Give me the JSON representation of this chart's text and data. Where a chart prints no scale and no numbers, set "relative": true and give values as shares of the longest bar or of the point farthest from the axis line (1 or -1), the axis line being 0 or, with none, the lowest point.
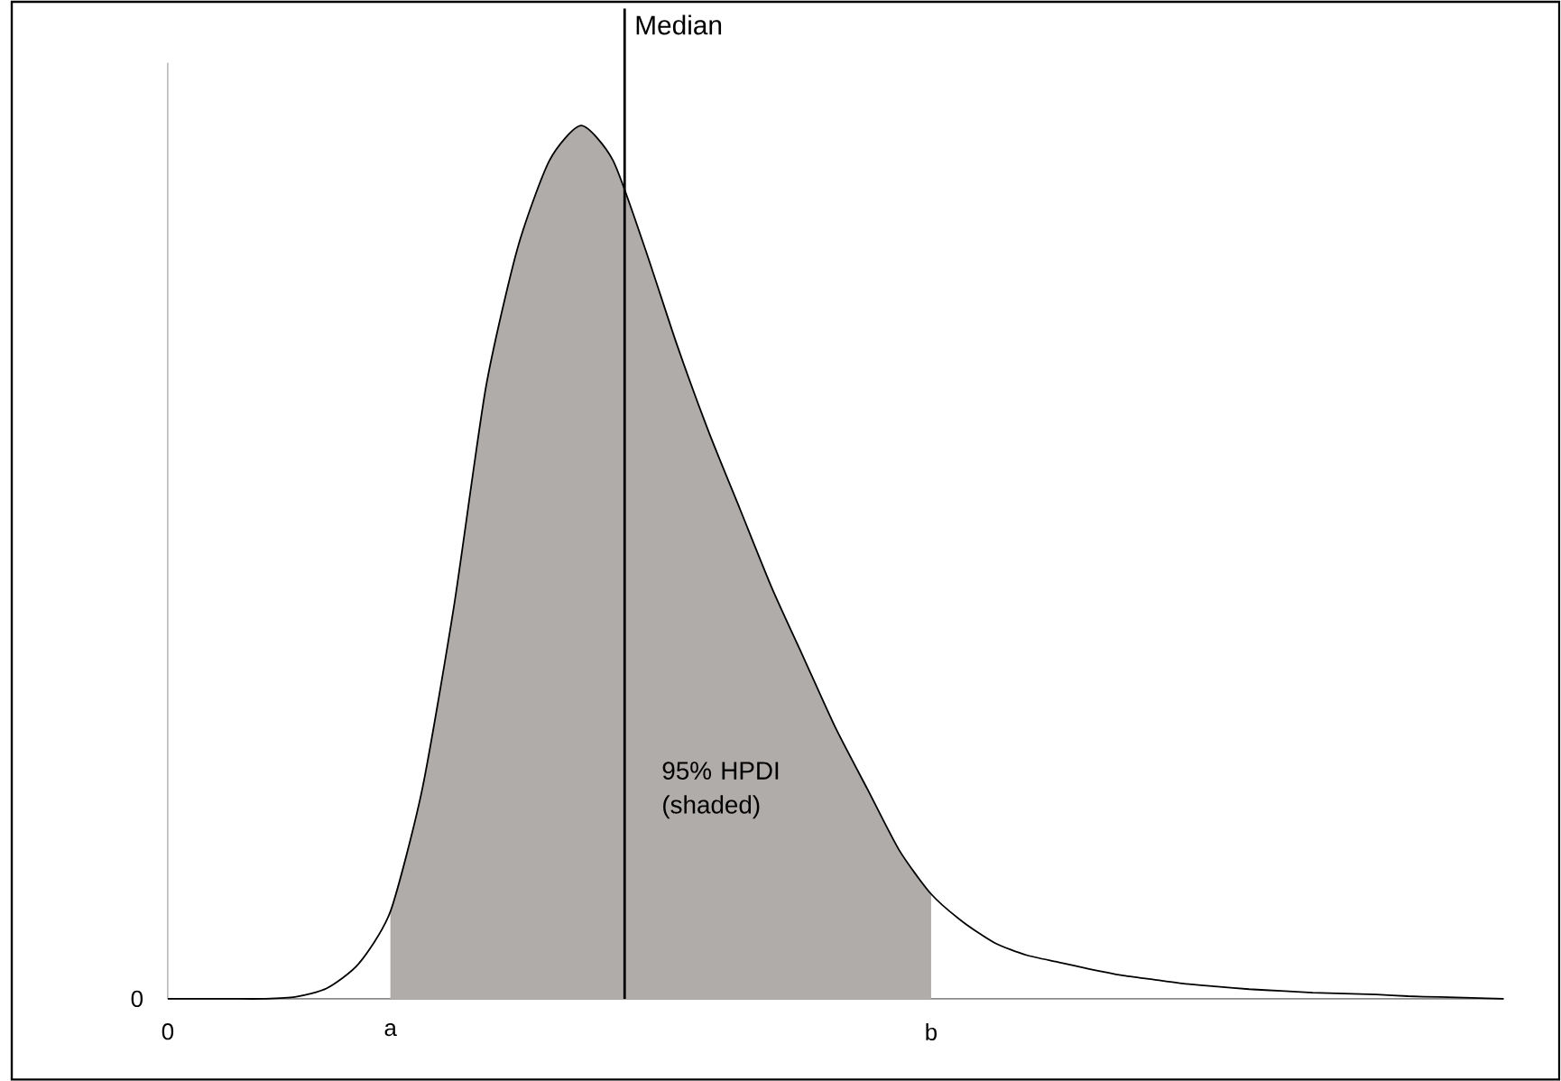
{
  "chart_data": {
    "type": "area",
    "relative": true,
    "categories": [
      "0",
      null,
      null,
      null,
      null,
      null,
      null,
      "a",
      null,
      null,
      null,
      null,
      null,
      null,
      null,
      null,
      null,
      null,
      null,
      null,
      null,
      null,
      null,
      null,
      "b",
      null,
      null,
      null,
      null,
      null,
      null,
      null,
      null,
      null,
      null,
      null,
      null,
      null,
      null,
      null,
      null,
      null,
      null
    ],
    "series": [
      {
        "color": "#b0acaa",
        "values": [
          null,
          null,
          null,
          null,
          null,
          null,
          null,
          0.1,
          0.24,
          0.45,
          0.7,
          0.86,
          0.96,
          1,
          0.96,
          0.86,
          0.75,
          0.65,
          0.56,
          0.47,
          0.39,
          0.31,
          0.24,
          0.17,
          0.12,
          null,
          null,
          null,
          null,
          null,
          null,
          null,
          null,
          null,
          null,
          null,
          null,
          null,
          null,
          null,
          null,
          null,
          null
        ]
      },
      {
        "type": "line",
        "color": "#000000",
        "values": [
          0,
          0,
          0,
          0,
          0.002,
          0.012,
          0.04,
          0.1,
          0.24,
          0.45,
          0.7,
          0.86,
          0.96,
          1,
          0.96,
          0.86,
          0.75,
          0.65,
          0.56,
          0.47,
          0.39,
          0.31,
          0.24,
          0.17,
          0.12,
          0.088,
          0.064,
          0.05,
          0.042,
          0.034,
          0.027,
          0.022,
          0.017,
          0.014,
          0.011,
          0.009,
          0.007,
          0.006,
          0.005,
          0.003,
          0.002,
          0.001,
          0
        ]
      }
    ],
    "annotations": [
      "95% HPDI (shaded)",
      "0",
      "Median"
    ]
  }
}
